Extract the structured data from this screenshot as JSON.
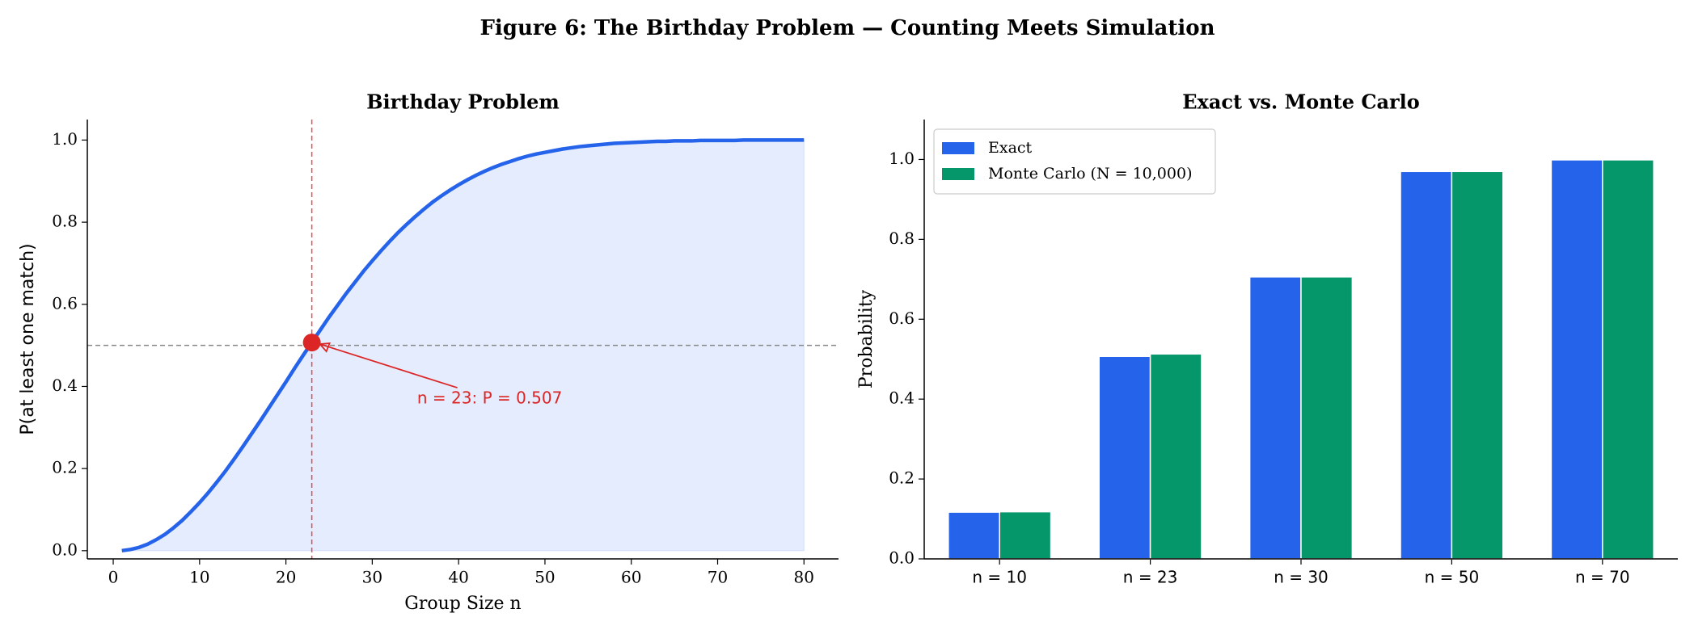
{
  "title": "Figure 6: The Birthday Problem — Counting Meets Simulation",
  "chart_data": [
    {
      "type": "line",
      "title": "Birthday Problem",
      "xlabel": "Group Size n",
      "ylabel": "P(at least one match)",
      "x": [
        1,
        2,
        3,
        4,
        5,
        6,
        7,
        8,
        9,
        10,
        11,
        12,
        13,
        14,
        15,
        16,
        17,
        18,
        19,
        20,
        21,
        22,
        23,
        24,
        25,
        26,
        27,
        28,
        29,
        30,
        31,
        32,
        33,
        34,
        35,
        36,
        37,
        38,
        39,
        40,
        41,
        42,
        43,
        44,
        45,
        46,
        47,
        48,
        49,
        50,
        51,
        52,
        53,
        54,
        55,
        56,
        57,
        58,
        59,
        60,
        61,
        62,
        63,
        64,
        65,
        66,
        67,
        68,
        69,
        70,
        71,
        72,
        73,
        74,
        75,
        76,
        77,
        78,
        79,
        80
      ],
      "values": [
        0,
        0.003,
        0.008,
        0.016,
        0.027,
        0.04,
        0.056,
        0.074,
        0.095,
        0.117,
        0.141,
        0.167,
        0.194,
        0.223,
        0.253,
        0.284,
        0.315,
        0.347,
        0.379,
        0.411,
        0.444,
        0.476,
        0.507,
        0.538,
        0.569,
        0.598,
        0.627,
        0.654,
        0.681,
        0.706,
        0.73,
        0.753,
        0.775,
        0.795,
        0.814,
        0.832,
        0.849,
        0.864,
        0.878,
        0.891,
        0.903,
        0.914,
        0.924,
        0.933,
        0.941,
        0.948,
        0.955,
        0.961,
        0.966,
        0.97,
        0.974,
        0.978,
        0.981,
        0.984,
        0.986,
        0.988,
        0.99,
        0.992,
        0.993,
        0.994,
        0.995,
        0.996,
        0.997,
        0.997,
        0.998,
        0.998,
        0.998,
        0.999,
        0.999,
        0.999,
        0.999,
        0.999,
        1.0,
        1.0,
        1.0,
        1.0,
        1.0,
        1.0,
        1.0,
        1.0
      ],
      "color": "#2563eb",
      "fill": true,
      "xlim": [
        -3,
        84
      ],
      "ylim": [
        -0.02,
        1.05
      ],
      "xticks": [
        0,
        10,
        20,
        30,
        40,
        50,
        60,
        70,
        80
      ],
      "yticks": [
        {
          "value": 0,
          "label": "0.0"
        },
        0.2,
        0.4,
        0.6,
        0.8,
        {
          "value": 1,
          "label": "1.0"
        }
      ],
      "vline": {
        "x": 23,
        "color": "#dc2626"
      },
      "hline": {
        "y": 0.5,
        "color": "#888888"
      },
      "highlight": {
        "x": 23,
        "y": 0.507,
        "color": "#dc2626",
        "label": "n = 23: P = 0.507"
      }
    },
    {
      "type": "bar",
      "title": "Exact vs. Monte Carlo",
      "ylabel": "Probability",
      "categories": [
        "n = 10",
        "n = 23",
        "n = 30",
        "n = 50",
        "n = 70"
      ],
      "series": [
        {
          "name": "Exact",
          "color": "#2563eb",
          "values": [
            0.117,
            0.507,
            0.706,
            0.97,
            0.999
          ]
        },
        {
          "name": "Monte Carlo (N = 10,000)",
          "color": "#059669",
          "values": [
            0.118,
            0.513,
            0.706,
            0.97,
            0.999
          ]
        }
      ],
      "ylim": [
        0,
        1.1
      ],
      "yticks": [
        {
          "value": 0,
          "label": "0.0"
        },
        0.2,
        0.4,
        0.6,
        0.8,
        {
          "value": 1,
          "label": "1.0"
        }
      ],
      "legend": "upper left"
    }
  ]
}
